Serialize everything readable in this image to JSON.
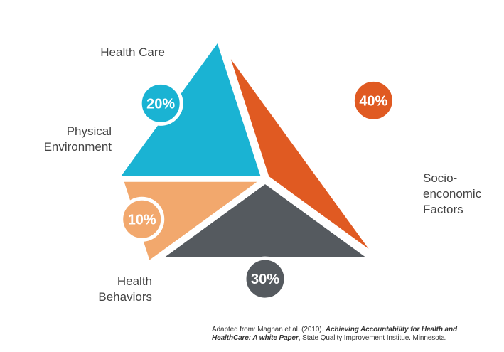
{
  "chart_data": {
    "type": "pie",
    "slices": [
      {
        "label": "Socio-\nenconomic\nFactors",
        "value": 40,
        "value_label": "40%",
        "color": "#e05a22"
      },
      {
        "label": "Health\nBehaviors",
        "value": 30,
        "value_label": "30%",
        "color": "#555a5f"
      },
      {
        "label": "Physical\nEnvironment",
        "value": 10,
        "value_label": "10%",
        "color": "#f2a86d"
      },
      {
        "label": "Health Care",
        "value": 20,
        "value_label": "20%",
        "color": "#1ab3d3"
      }
    ],
    "title": ""
  },
  "source": {
    "prefix": "Adapted from: Magnan et al. (2010). ",
    "title": "Achieving Accountability for Health and HealthCare: A white Paper",
    "suffix": ", State Quality Improvement  Institue. Minnesota."
  }
}
